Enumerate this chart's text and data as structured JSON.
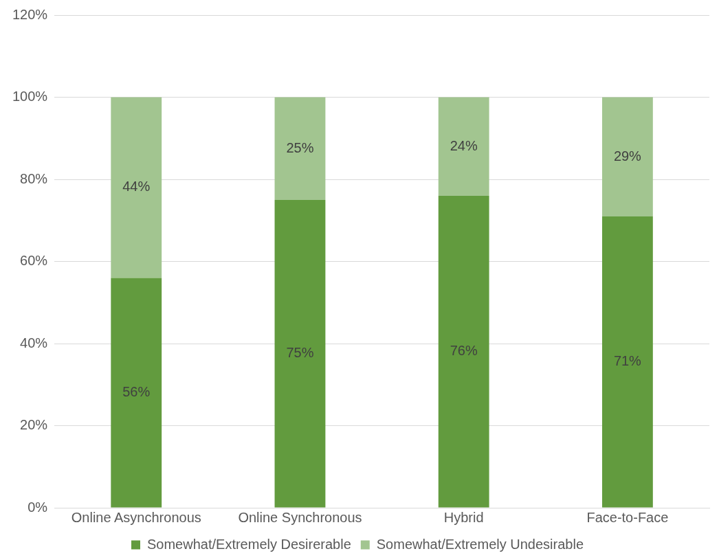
{
  "chart_data": {
    "type": "bar",
    "stacked": true,
    "categories": [
      "Online Asynchronous",
      "Online Synchronous",
      "Hybrid",
      "Face-to-Face"
    ],
    "series": [
      {
        "name": "Somewhat/Extremely Desirerable",
        "color": "#629b3e",
        "values": [
          56,
          75,
          76,
          71
        ],
        "value_labels": [
          "56%",
          "75%",
          "76%",
          "71%"
        ]
      },
      {
        "name": "Somewhat/Extremely Undesirable",
        "color": "#a2c590",
        "values": [
          44,
          25,
          24,
          29
        ],
        "value_labels": [
          "44%",
          "25%",
          "24%",
          "29%"
        ]
      }
    ],
    "ylim": [
      0,
      120
    ],
    "yticks": [
      {
        "value": 0,
        "label": "0%"
      },
      {
        "value": 20,
        "label": "20%"
      },
      {
        "value": 40,
        "label": "40%"
      },
      {
        "value": 60,
        "label": "60%"
      },
      {
        "value": 80,
        "label": "80%"
      },
      {
        "value": 100,
        "label": "100%"
      },
      {
        "value": 120,
        "label": "120%"
      }
    ],
    "grid": "y",
    "legend": "bottom"
  }
}
